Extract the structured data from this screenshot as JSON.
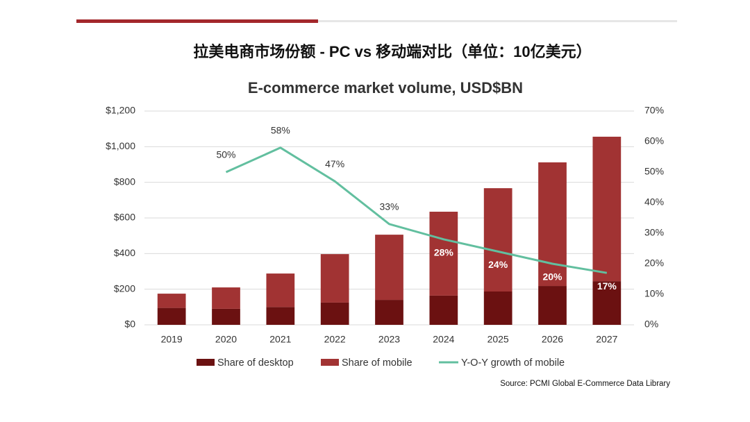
{
  "heading": "拉美电商市场份额 - PC vs 移动端对比（单位：10亿美元）",
  "chart_data": {
    "type": "stacked-bar-line",
    "title": "E-commerce market volume, USD$BN",
    "categories": [
      "2019",
      "2020",
      "2021",
      "2022",
      "2023",
      "2024",
      "2025",
      "2026",
      "2027"
    ],
    "series": [
      {
        "name": "Share of desktop",
        "color": "#6b1111",
        "values": [
          95,
          90,
          100,
          125,
          140,
          164,
          187,
          218,
          245
        ]
      },
      {
        "name": "Share of mobile",
        "color": "#a13333",
        "values": [
          80,
          120,
          188,
          272,
          366,
          471,
          580,
          694,
          811
        ]
      },
      {
        "name": "Y-O-Y growth of mobile",
        "color": "#62bf9f",
        "axis": "y2",
        "values": [
          null,
          50,
          58,
          47,
          33,
          28,
          24,
          20,
          17
        ],
        "value_labels": [
          null,
          "50%",
          "58%",
          "47%",
          "33%",
          "28%",
          "24%",
          "20%",
          "17%"
        ]
      }
    ],
    "ylim": [
      0,
      1200
    ],
    "yticks": [
      {
        "value": 0,
        "label": "$0"
      },
      {
        "value": 200,
        "label": "$200"
      },
      {
        "value": 400,
        "label": "$400"
      },
      {
        "value": 600,
        "label": "$600"
      },
      {
        "value": 800,
        "label": "$800"
      },
      {
        "value": 1000,
        "label": "$1,000"
      },
      {
        "value": 1200,
        "label": "$1,200"
      }
    ],
    "y2lim": [
      0,
      70
    ],
    "y2ticks": [
      {
        "value": 0,
        "label": "0%"
      },
      {
        "value": 10,
        "label": "10%"
      },
      {
        "value": 20,
        "label": "20%"
      },
      {
        "value": 30,
        "label": "30%"
      },
      {
        "value": 40,
        "label": "40%"
      },
      {
        "value": 50,
        "label": "50%"
      },
      {
        "value": 60,
        "label": "60%"
      },
      {
        "value": 70,
        "label": "70%"
      }
    ],
    "grid": true,
    "legend": "bottom",
    "source": "Source: PCMI Global E-Commerce Data Library"
  }
}
